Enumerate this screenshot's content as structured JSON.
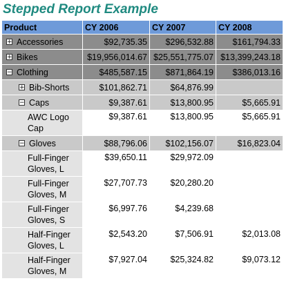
{
  "title": "Stepped Report Example",
  "headers": [
    "Product",
    "CY 2006",
    "CY 2007",
    "CY 2008"
  ],
  "rows": [
    {
      "level": 0,
      "toggle": "+",
      "label": "Accessories",
      "v": [
        "$92,735.35",
        "$296,532.88",
        "$161,794.33"
      ]
    },
    {
      "level": 0,
      "toggle": "+",
      "label": "Bikes",
      "v": [
        "$19,956,014.67",
        "$25,551,775.07",
        "$13,399,243.18"
      ]
    },
    {
      "level": 0,
      "toggle": "−",
      "label": "Clothing",
      "v": [
        "$485,587.15",
        "$871,864.19",
        "$386,013.16"
      ]
    },
    {
      "level": 1,
      "toggle": "+",
      "label": "Bib-Shorts",
      "v": [
        "$101,862.71",
        "$64,876.99",
        ""
      ]
    },
    {
      "level": 1,
      "toggle": "−",
      "label": "Caps",
      "v": [
        "$9,387.61",
        "$13,800.95",
        "$5,665.91"
      ]
    },
    {
      "level": 2,
      "toggle": "",
      "label": "AWC Logo Cap",
      "v": [
        "$9,387.61",
        "$13,800.95",
        "$5,665.91"
      ]
    },
    {
      "level": 1,
      "toggle": "−",
      "label": "Gloves",
      "v": [
        "$88,796.06",
        "$102,156.07",
        "$16,823.04"
      ]
    },
    {
      "level": 2,
      "toggle": "",
      "label": "Full-Finger Gloves, L",
      "v": [
        "$39,650.11",
        "$29,972.09",
        ""
      ]
    },
    {
      "level": 2,
      "toggle": "",
      "label": "Full-Finger Gloves, M",
      "v": [
        "$27,707.73",
        "$20,280.20",
        ""
      ]
    },
    {
      "level": 2,
      "toggle": "",
      "label": "Full-Finger Gloves, S",
      "v": [
        "$6,997.76",
        "$4,239.68",
        ""
      ]
    },
    {
      "level": 2,
      "toggle": "",
      "label": "Half-Finger Gloves, L",
      "v": [
        "$2,543.20",
        "$7,506.91",
        "$2,013.08"
      ]
    },
    {
      "level": 2,
      "toggle": "",
      "label": "Half-Finger Gloves, M",
      "v": [
        "$7,927.04",
        "$25,324.82",
        "$9,073.12"
      ]
    }
  ]
}
